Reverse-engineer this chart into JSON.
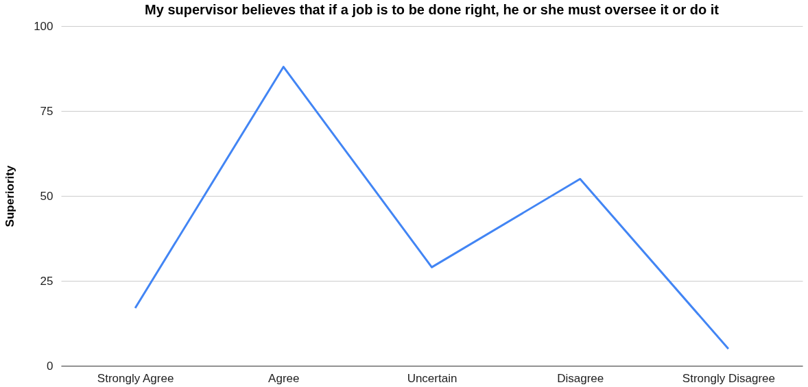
{
  "chart_data": {
    "type": "line",
    "title": "My supervisor believes that if a job is to be done right, he or she must oversee it or do it",
    "ylabel": "Superiority",
    "categories": [
      "Strongly Agree",
      "Agree",
      "Uncertain",
      "Disagree",
      "Strongly Disagree"
    ],
    "values": [
      17,
      88,
      29,
      55,
      5
    ],
    "color": "#4285f4",
    "ylim": [
      0,
      100
    ],
    "yticks": [
      0,
      25,
      50,
      75,
      100
    ],
    "grid": "y",
    "line_style": "solid"
  }
}
